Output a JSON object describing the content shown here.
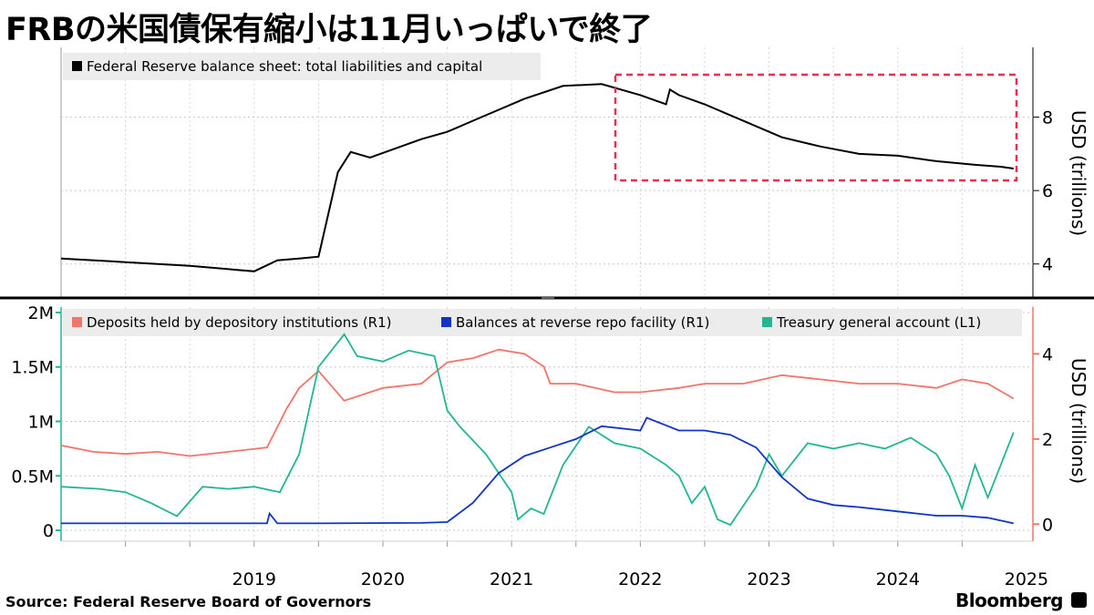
{
  "title": "FRBの米国債保有縮小は11月いっぱいで終了",
  "source": "Source: Federal Reserve Board of Governors",
  "brand": "Bloomberg",
  "colors": {
    "balance_sheet": "#000000",
    "deposits": "#f0756a",
    "reverse_repo": "#1033c8",
    "tga": "#22b693",
    "highlight_box": "#e8304a"
  },
  "chart_data": [
    {
      "type": "line",
      "panel": "top",
      "series": [
        {
          "name": "Federal Reserve balance sheet: total liabilities and capital",
          "x": [
            2018.0,
            2018.5,
            2019.0,
            2019.5,
            2019.68,
            2019.85,
            2020.0,
            2020.15,
            2020.25,
            2020.4,
            2020.6,
            2020.8,
            2021.0,
            2021.3,
            2021.6,
            2021.9,
            2022.2,
            2022.5,
            2022.7,
            2022.73,
            2022.8,
            2023.0,
            2023.3,
            2023.6,
            2023.9,
            2024.2,
            2024.5,
            2024.8,
            2025.1,
            2025.3,
            2025.4
          ],
          "values": [
            4.15,
            4.05,
            3.95,
            3.8,
            4.1,
            4.15,
            4.2,
            6.5,
            7.05,
            6.9,
            7.15,
            7.4,
            7.6,
            8.05,
            8.5,
            8.85,
            8.9,
            8.6,
            8.35,
            8.75,
            8.6,
            8.35,
            7.9,
            7.45,
            7.2,
            7.0,
            6.95,
            6.8,
            6.7,
            6.65,
            6.6
          ]
        }
      ],
      "ylabel": "USD (trillions)",
      "y_ticks": [
        4,
        6,
        8
      ],
      "ylim": [
        3.1,
        9.9
      ],
      "xlim": [
        2018.0,
        2025.55
      ],
      "legend": "top-left",
      "annotation": "dashed highlight box over late-2022 to 2025"
    },
    {
      "type": "line",
      "panel": "bottom",
      "series": [
        {
          "name": "Deposits held by depository institutions (R1)",
          "axis": "right",
          "x": [
            2018.0,
            2018.25,
            2018.5,
            2018.75,
            2019.0,
            2019.3,
            2019.6,
            2019.75,
            2019.85,
            2020.0,
            2020.2,
            2020.5,
            2020.8,
            2021.0,
            2021.2,
            2021.4,
            2021.6,
            2021.75,
            2021.8,
            2022.0,
            2022.3,
            2022.5,
            2022.8,
            2023.0,
            2023.3,
            2023.6,
            2023.9,
            2024.2,
            2024.5,
            2024.8,
            2025.0,
            2025.2,
            2025.4
          ],
          "values": [
            1.85,
            1.7,
            1.65,
            1.7,
            1.6,
            1.7,
            1.8,
            2.7,
            3.2,
            3.6,
            2.9,
            3.2,
            3.3,
            3.8,
            3.9,
            4.1,
            4.0,
            3.7,
            3.3,
            3.3,
            3.1,
            3.1,
            3.2,
            3.3,
            3.3,
            3.5,
            3.4,
            3.3,
            3.3,
            3.2,
            3.4,
            3.3,
            2.95
          ]
        },
        {
          "name": "Balances at reverse repo facility (R1)",
          "axis": "right",
          "x": [
            2018.0,
            2019.0,
            2019.6,
            2019.62,
            2019.68,
            2020.0,
            2020.8,
            2021.0,
            2021.2,
            2021.4,
            2021.6,
            2021.8,
            2022.0,
            2022.2,
            2022.5,
            2022.55,
            2022.8,
            2023.0,
            2023.2,
            2023.4,
            2023.6,
            2023.8,
            2024.0,
            2024.2,
            2024.5,
            2024.8,
            2025.0,
            2025.2,
            2025.4
          ],
          "values": [
            0.02,
            0.02,
            0.02,
            0.25,
            0.02,
            0.02,
            0.03,
            0.05,
            0.5,
            1.2,
            1.6,
            1.8,
            2.0,
            2.3,
            2.2,
            2.5,
            2.2,
            2.2,
            2.1,
            1.8,
            1.1,
            0.6,
            0.45,
            0.4,
            0.3,
            0.2,
            0.2,
            0.15,
            0.02
          ]
        },
        {
          "name": "Treasury general account  (L1)",
          "axis": "left",
          "x": [
            2018.0,
            2018.3,
            2018.5,
            2018.7,
            2018.9,
            2019.1,
            2019.3,
            2019.5,
            2019.7,
            2019.85,
            2020.0,
            2020.2,
            2020.3,
            2020.5,
            2020.7,
            2020.9,
            2021.0,
            2021.1,
            2021.3,
            2021.5,
            2021.55,
            2021.65,
            2021.75,
            2021.9,
            2022.1,
            2022.3,
            2022.5,
            2022.7,
            2022.8,
            2022.9,
            2023.0,
            2023.1,
            2023.2,
            2023.4,
            2023.5,
            2023.6,
            2023.8,
            2024.0,
            2024.2,
            2024.4,
            2024.6,
            2024.8,
            2024.9,
            2025.0,
            2025.1,
            2025.2,
            2025.3,
            2025.4
          ],
          "values": [
            400000,
            380000,
            350000,
            250000,
            130000,
            400000,
            380000,
            400000,
            350000,
            700000,
            1500000,
            1800000,
            1600000,
            1550000,
            1650000,
            1600000,
            1100000,
            950000,
            700000,
            350000,
            100000,
            200000,
            150000,
            600000,
            950000,
            800000,
            750000,
            600000,
            500000,
            250000,
            400000,
            100000,
            50000,
            400000,
            700000,
            500000,
            800000,
            750000,
            800000,
            750000,
            850000,
            700000,
            500000,
            200000,
            600000,
            300000,
            600000,
            900000
          ]
        }
      ],
      "left_axis": {
        "ticks": [
          0,
          500000,
          1000000,
          1500000,
          2000000
        ],
        "tick_labels": [
          "0",
          "0.5M",
          "1M",
          "1.5M",
          "2M"
        ],
        "ylim": [
          -100000,
          2050000
        ]
      },
      "right_axis": {
        "ylabel": "USD (trillions)",
        "ticks": [
          0,
          2,
          4
        ],
        "tick_labels": [
          "0",
          "2",
          "4"
        ],
        "ylim": [
          -0.4,
          5.1
        ]
      },
      "x_tick_labels": [
        "2019",
        "2020",
        "2021",
        "2022",
        "2023",
        "2024",
        "2025"
      ],
      "xlim": [
        2018.0,
        2025.55
      ],
      "legend": "top"
    }
  ]
}
